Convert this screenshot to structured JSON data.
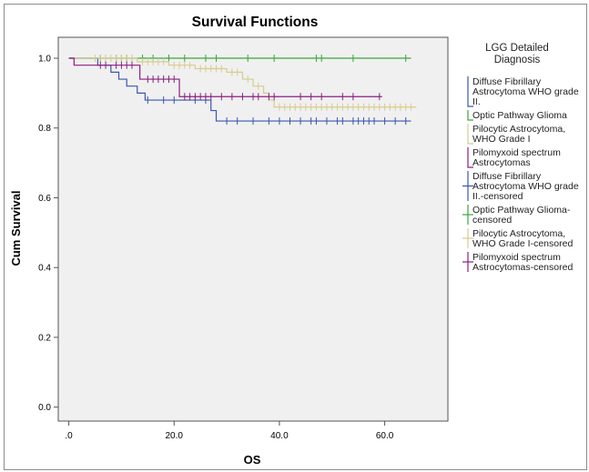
{
  "chart_data": {
    "type": "line",
    "title": "Survival Functions",
    "xlabel": "OS",
    "ylabel": "Cum Survival",
    "xlim": [
      -2,
      72
    ],
    "ylim": [
      -0.04,
      1.06
    ],
    "xticks": [
      ".0",
      "20.0",
      "40.0",
      "60.0"
    ],
    "xtick_values": [
      0,
      20,
      40,
      60
    ],
    "yticks": [
      "0.0",
      "0.2",
      "0.4",
      "0.6",
      "0.8",
      "1.0"
    ],
    "ytick_values": [
      0,
      0.2,
      0.4,
      0.6,
      0.8,
      1.0
    ],
    "grid": false,
    "legend_title": [
      "LGG Detailed",
      "Diagnosis"
    ],
    "legend_position": "right",
    "legend": [
      {
        "label": [
          "Diffuse Fibrillary",
          "Astrocytoma WHO grade",
          "II."
        ],
        "kind": "line",
        "color": "#3a56b0"
      },
      {
        "label": [
          "Optic Pathway Glioma"
        ],
        "kind": "line",
        "color": "#3aa63a"
      },
      {
        "label": [
          "Pilocytic Astrocytoma,",
          "WHO Grade I"
        ],
        "kind": "line",
        "color": "#d6cc8f"
      },
      {
        "label": [
          "Pilomyxoid spectrum",
          "Astrocytomas"
        ],
        "kind": "line",
        "color": "#8b1f7f"
      },
      {
        "label": [
          "Diffuse Fibrillary",
          "Astrocytoma WHO grade",
          "II.-censored"
        ],
        "kind": "cross",
        "color": "#3a56b0"
      },
      {
        "label": [
          "Optic Pathway Glioma-",
          "censored"
        ],
        "kind": "cross",
        "color": "#3aa63a"
      },
      {
        "label": [
          "Pilocytic Astrocytoma,",
          "WHO Grade I-censored"
        ],
        "kind": "cross",
        "color": "#d6cc8f"
      },
      {
        "label": [
          "Pilomyxoid spectrum",
          "Astrocytomas-censored"
        ],
        "kind": "cross",
        "color": "#8b1f7f"
      }
    ],
    "series": [
      {
        "color": "#3a56b0",
        "steps": [
          [
            0,
            1.0
          ],
          [
            5.5,
            0.98
          ],
          [
            8,
            0.96
          ],
          [
            9.5,
            0.94
          ],
          [
            11,
            0.92
          ],
          [
            13,
            0.9
          ],
          [
            14.5,
            0.88
          ],
          [
            27,
            0.85
          ],
          [
            28,
            0.82
          ],
          [
            65,
            0.82
          ]
        ],
        "censored": [
          [
            15,
            0.88
          ],
          [
            18,
            0.88
          ],
          [
            20,
            0.88
          ],
          [
            24,
            0.88
          ],
          [
            26,
            0.88
          ],
          [
            30,
            0.82
          ],
          [
            32,
            0.82
          ],
          [
            35,
            0.82
          ],
          [
            38,
            0.82
          ],
          [
            40,
            0.82
          ],
          [
            42,
            0.82
          ],
          [
            44,
            0.82
          ],
          [
            46,
            0.82
          ],
          [
            47,
            0.82
          ],
          [
            49,
            0.82
          ],
          [
            51,
            0.82
          ],
          [
            52,
            0.82
          ],
          [
            54,
            0.82
          ],
          [
            55,
            0.82
          ],
          [
            56,
            0.82
          ],
          [
            57,
            0.82
          ],
          [
            58,
            0.82
          ],
          [
            60,
            0.82
          ],
          [
            62,
            0.82
          ],
          [
            64,
            0.82
          ]
        ]
      },
      {
        "color": "#3aa63a",
        "steps": [
          [
            0,
            1.0
          ],
          [
            65,
            1.0
          ]
        ],
        "censored": [
          [
            6,
            1.0
          ],
          [
            9,
            1.0
          ],
          [
            10,
            1.0
          ],
          [
            11,
            1.0
          ],
          [
            12,
            1.0
          ],
          [
            14,
            1.0
          ],
          [
            16,
            1.0
          ],
          [
            19,
            1.0
          ],
          [
            22,
            1.0
          ],
          [
            26,
            1.0
          ],
          [
            28,
            1.0
          ],
          [
            34,
            1.0
          ],
          [
            39,
            1.0
          ],
          [
            47,
            1.0
          ],
          [
            48,
            1.0
          ],
          [
            54,
            1.0
          ],
          [
            64,
            1.0
          ]
        ]
      },
      {
        "color": "#d6cc8f",
        "steps": [
          [
            0,
            1.0
          ],
          [
            13,
            0.99
          ],
          [
            19,
            0.98
          ],
          [
            24,
            0.97
          ],
          [
            30,
            0.96
          ],
          [
            33,
            0.94
          ],
          [
            35,
            0.92
          ],
          [
            37,
            0.9
          ],
          [
            38,
            0.88
          ],
          [
            39,
            0.86
          ],
          [
            66,
            0.86
          ]
        ],
        "censored": [
          [
            5,
            1.0
          ],
          [
            6,
            1.0
          ],
          [
            7,
            1.0
          ],
          [
            8,
            1.0
          ],
          [
            9,
            1.0
          ],
          [
            10,
            1.0
          ],
          [
            11,
            1.0
          ],
          [
            12,
            1.0
          ],
          [
            14,
            0.99
          ],
          [
            15,
            0.99
          ],
          [
            16,
            0.99
          ],
          [
            17,
            0.99
          ],
          [
            18,
            0.99
          ],
          [
            20,
            0.98
          ],
          [
            21,
            0.98
          ],
          [
            22,
            0.98
          ],
          [
            23,
            0.98
          ],
          [
            25,
            0.97
          ],
          [
            26,
            0.97
          ],
          [
            27,
            0.97
          ],
          [
            28,
            0.97
          ],
          [
            29,
            0.97
          ],
          [
            31,
            0.96
          ],
          [
            32,
            0.96
          ],
          [
            34,
            0.94
          ],
          [
            36,
            0.92
          ],
          [
            40,
            0.86
          ],
          [
            41,
            0.86
          ],
          [
            42,
            0.86
          ],
          [
            43,
            0.86
          ],
          [
            44,
            0.86
          ],
          [
            45,
            0.86
          ],
          [
            46,
            0.86
          ],
          [
            47,
            0.86
          ],
          [
            48,
            0.86
          ],
          [
            49,
            0.86
          ],
          [
            50,
            0.86
          ],
          [
            51,
            0.86
          ],
          [
            52,
            0.86
          ],
          [
            53,
            0.86
          ],
          [
            54,
            0.86
          ],
          [
            55,
            0.86
          ],
          [
            56,
            0.86
          ],
          [
            57,
            0.86
          ],
          [
            58,
            0.86
          ],
          [
            59,
            0.86
          ],
          [
            60,
            0.86
          ],
          [
            61,
            0.86
          ],
          [
            62,
            0.86
          ],
          [
            63,
            0.86
          ],
          [
            64,
            0.86
          ],
          [
            65,
            0.86
          ]
        ]
      },
      {
        "color": "#8b1f7f",
        "steps": [
          [
            0,
            1.0
          ],
          [
            1,
            0.98
          ],
          [
            13.5,
            0.94
          ],
          [
            21,
            0.89
          ],
          [
            59.5,
            0.89
          ]
        ],
        "censored": [
          [
            6,
            0.98
          ],
          [
            7,
            0.98
          ],
          [
            9,
            0.98
          ],
          [
            10,
            0.98
          ],
          [
            11,
            0.98
          ],
          [
            12,
            0.98
          ],
          [
            15,
            0.94
          ],
          [
            16,
            0.94
          ],
          [
            17,
            0.94
          ],
          [
            18,
            0.94
          ],
          [
            19,
            0.94
          ],
          [
            20,
            0.94
          ],
          [
            22,
            0.89
          ],
          [
            23,
            0.89
          ],
          [
            24,
            0.89
          ],
          [
            25,
            0.89
          ],
          [
            26,
            0.89
          ],
          [
            27,
            0.89
          ],
          [
            29,
            0.89
          ],
          [
            31,
            0.89
          ],
          [
            33,
            0.89
          ],
          [
            35,
            0.89
          ],
          [
            36,
            0.89
          ],
          [
            38,
            0.89
          ],
          [
            39,
            0.89
          ],
          [
            44,
            0.89
          ],
          [
            46,
            0.89
          ],
          [
            48,
            0.89
          ],
          [
            52,
            0.89
          ],
          [
            54,
            0.89
          ],
          [
            59,
            0.89
          ]
        ]
      }
    ]
  }
}
